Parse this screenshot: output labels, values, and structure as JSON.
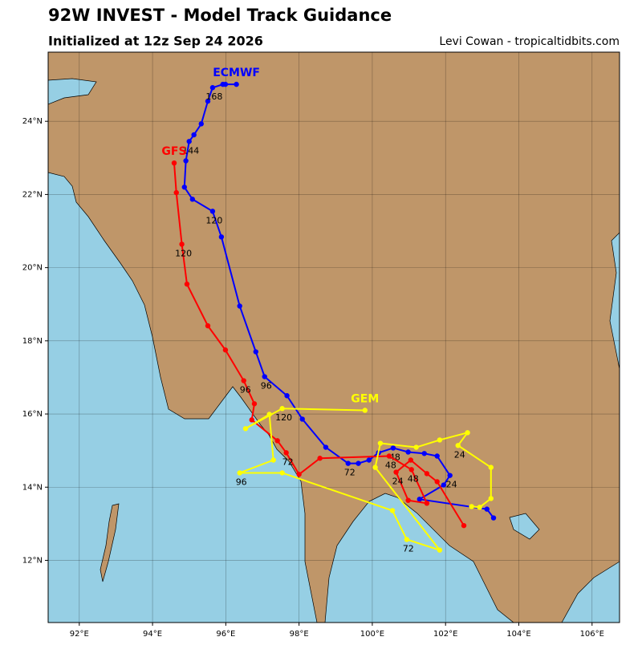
{
  "chart_data": {
    "type": "track",
    "title": "92W INVEST - Model Track Guidance",
    "subtitle": "Initialized at 12z Sep 24 2026",
    "credit": "Levi Cowan - tropicaltidbits.com",
    "xlim": [
      91.15,
      106.75
    ],
    "ylim": [
      10.3,
      25.89
    ],
    "xticks": [
      {
        "value": 92,
        "label": "92°E"
      },
      {
        "value": 94,
        "label": "94°E"
      },
      {
        "value": 96,
        "label": "96°E"
      },
      {
        "value": 98,
        "label": "98°E"
      },
      {
        "value": 100,
        "label": "100°E"
      },
      {
        "value": 102,
        "label": "102°E"
      },
      {
        "value": 104,
        "label": "104°E"
      },
      {
        "value": 106,
        "label": "106°E"
      }
    ],
    "yticks": [
      {
        "value": 12,
        "label": "12°N"
      },
      {
        "value": 14,
        "label": "14°N"
      },
      {
        "value": 16,
        "label": "16°N"
      },
      {
        "value": 18,
        "label": "18°N"
      },
      {
        "value": 20,
        "label": "20°N"
      },
      {
        "value": 22,
        "label": "22°N"
      },
      {
        "value": 24,
        "label": "24°N"
      }
    ],
    "grid": true,
    "series": [
      {
        "name": "ECMWF",
        "color": "#0000ff",
        "x": [
          103.31,
          103.13,
          101.29,
          101.95,
          102.12,
          101.77,
          101.42,
          100.98,
          100.57,
          100.17,
          99.91,
          99.62,
          99.34,
          98.73,
          98.09,
          97.67,
          97.06,
          96.82,
          96.38,
          95.88,
          95.64,
          95.09,
          94.87,
          94.91,
          95.0,
          95.13,
          95.33,
          95.51,
          95.64,
          95.92,
          95.99,
          96.29
        ],
        "values": [
          13.16,
          13.4,
          13.67,
          14.06,
          14.32,
          14.85,
          14.92,
          14.96,
          15.07,
          14.94,
          14.74,
          14.65,
          14.65,
          15.09,
          15.86,
          16.5,
          17.02,
          17.7,
          18.95,
          20.84,
          21.54,
          21.87,
          22.2,
          22.92,
          23.45,
          23.63,
          23.93,
          24.55,
          24.92,
          25.01,
          25.01,
          25.01
        ],
        "point_labels": [
          null,
          null,
          null,
          null,
          "24",
          null,
          null,
          null,
          "48",
          null,
          null,
          null,
          "72",
          null,
          null,
          null,
          "96",
          null,
          null,
          null,
          "120",
          null,
          null,
          null,
          "144",
          null,
          null,
          null,
          "168",
          null,
          null,
          null
        ]
      },
      {
        "name": "GFS",
        "color": "#ff0000",
        "x": [
          102.5,
          101.77,
          101.49,
          101.05,
          100.65,
          100.98,
          101.49,
          101.07,
          100.46,
          98.57,
          98.0,
          97.65,
          97.41,
          96.71,
          96.78,
          96.49,
          95.99,
          95.51,
          94.94,
          94.8,
          94.65,
          94.59
        ],
        "values": [
          12.95,
          14.15,
          14.37,
          14.74,
          14.41,
          13.64,
          13.56,
          14.48,
          14.85,
          14.79,
          14.35,
          14.94,
          15.27,
          15.84,
          16.28,
          16.91,
          17.75,
          18.41,
          19.55,
          20.64,
          22.05,
          22.86
        ],
        "point_labels": [
          null,
          null,
          null,
          null,
          "24",
          null,
          null,
          "48",
          "48",
          null,
          null,
          "72",
          null,
          null,
          null,
          "96",
          null,
          null,
          null,
          "120",
          null,
          null
        ]
      },
      {
        "name": "GEM",
        "color": "#ffff00",
        "x": [
          102.71,
          102.93,
          103.24,
          103.24,
          102.34,
          102.6,
          101.84,
          101.2,
          100.22,
          100.08,
          101.84,
          100.94,
          100.55,
          97.54,
          96.38,
          97.3,
          97.19,
          96.54,
          97.54,
          99.8
        ],
        "values": [
          13.47,
          13.45,
          13.69,
          14.54,
          15.14,
          15.49,
          15.29,
          15.09,
          15.2,
          14.54,
          12.28,
          12.57,
          13.36,
          14.39,
          14.39,
          14.74,
          15.99,
          15.6,
          16.15,
          16.1
        ],
        "point_labels": [
          null,
          null,
          null,
          null,
          "24",
          null,
          null,
          null,
          null,
          null,
          null,
          "72",
          null,
          null,
          "96",
          null,
          null,
          null,
          "120",
          null
        ]
      }
    ]
  }
}
